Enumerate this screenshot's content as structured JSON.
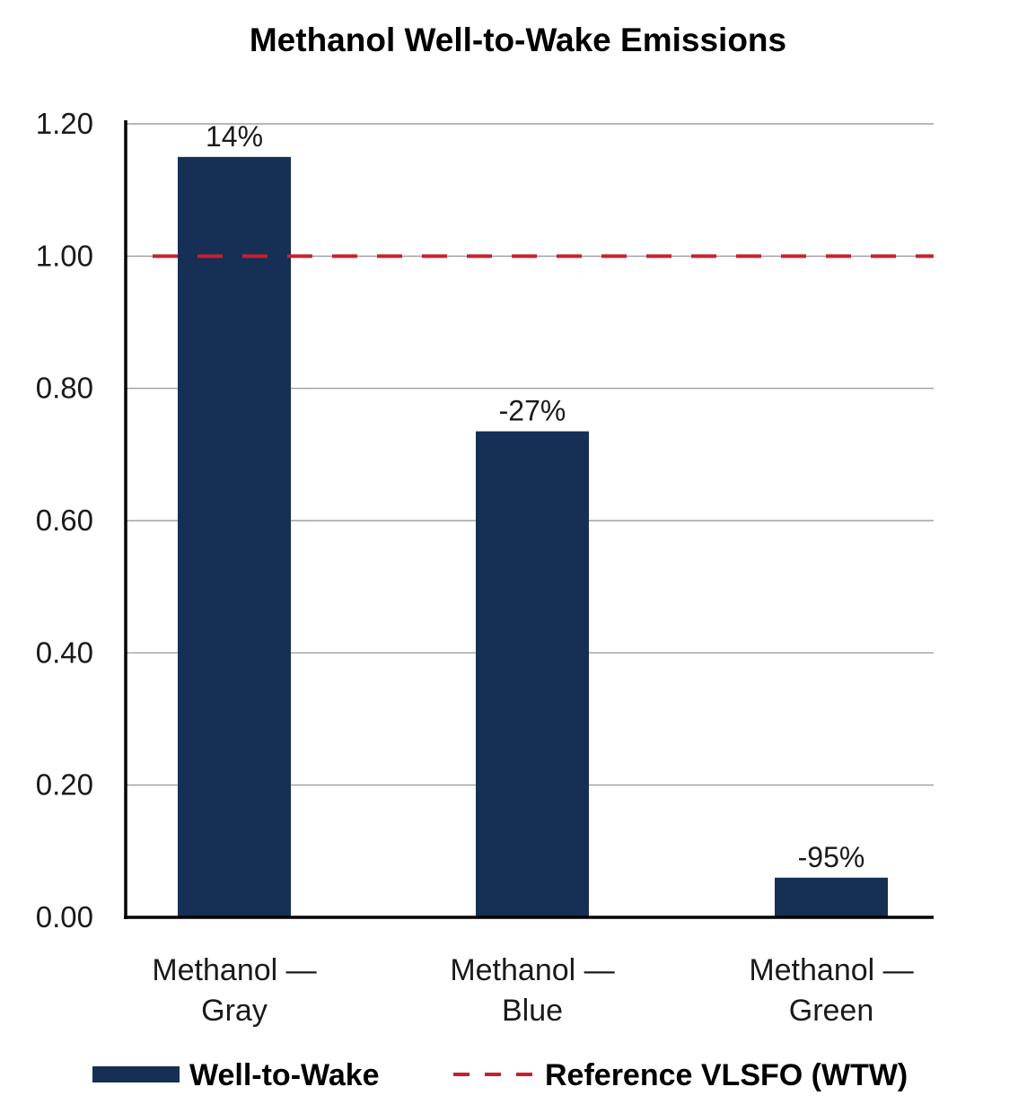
{
  "chart_data": {
    "type": "bar",
    "title": "Methanol Well-to-Wake Emissions",
    "xlabel": "",
    "ylabel": "",
    "ylim": [
      0,
      1.2
    ],
    "yticks": [
      "0.00",
      "0.20",
      "0.40",
      "0.60",
      "0.80",
      "1.00",
      "1.20"
    ],
    "categories": [
      [
        "Methanol —",
        "Gray"
      ],
      [
        "Methanol —",
        "Blue"
      ],
      [
        "Methanol —",
        "Green"
      ]
    ],
    "series": [
      {
        "name": "Well-to-Wake",
        "values": [
          1.15,
          0.735,
          0.06
        ],
        "data_labels": [
          "14%",
          "-27%",
          "-95%"
        ],
        "color": "#152f55"
      }
    ],
    "reference_line": {
      "name": "Reference VLSFO (WTW)",
      "value": 1.0,
      "color": "#c8202f",
      "style": "dashed"
    },
    "grid": true,
    "legend_position": "bottom"
  }
}
